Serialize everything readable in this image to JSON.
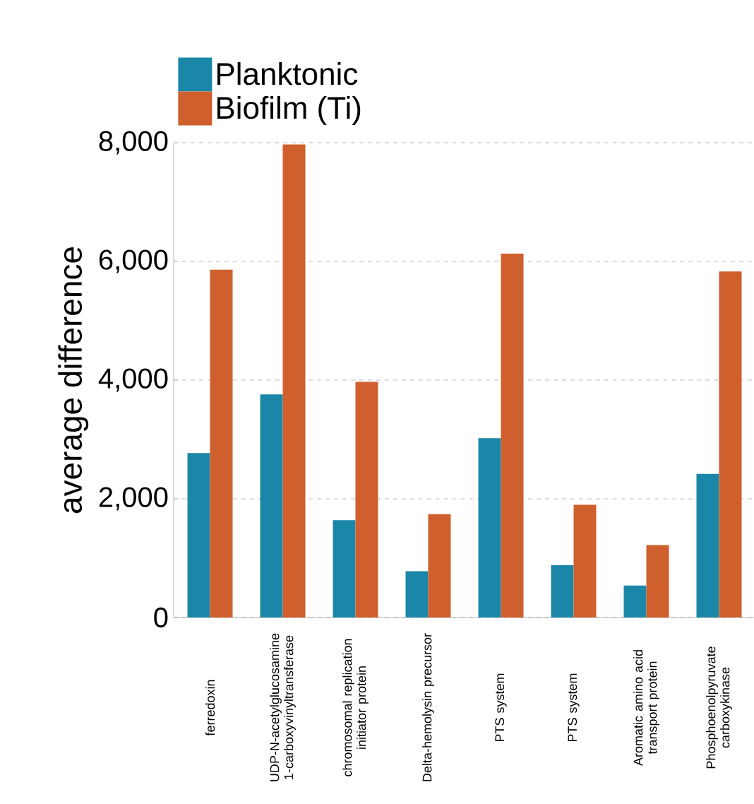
{
  "chart_data": {
    "type": "bar",
    "ylabel": "average difference",
    "categories": [
      "ferredoxin",
      "UDP-N-acetylglucosamine 1-carboxyvinyltransferase",
      "chromosomal replication initiator protein",
      "Delta-hemolysin precursor",
      "PTS system",
      "PTS system",
      "Aromatic amino acid transport protein",
      "Phosphoenolpyruvate carboxykinase"
    ],
    "series": [
      {
        "name": "Planktonic",
        "color": "#1b87a8",
        "values": [
          2770,
          3760,
          1640,
          780,
          3020,
          880,
          540,
          2420
        ]
      },
      {
        "name": "Biofilm (Ti)",
        "color": "#cf5f2c",
        "values": [
          5860,
          7970,
          3970,
          1740,
          6130,
          1900,
          1220,
          5830
        ]
      }
    ],
    "ylim": [
      0,
      8000
    ],
    "yticks": [
      0,
      {
        "value": 2000,
        "label": "2,000"
      },
      {
        "value": 4000,
        "label": "4,000"
      },
      {
        "value": 6000,
        "label": "6,000"
      },
      {
        "value": 8000,
        "label": "8,000"
      }
    ],
    "grid": "y",
    "legend": "top left"
  }
}
